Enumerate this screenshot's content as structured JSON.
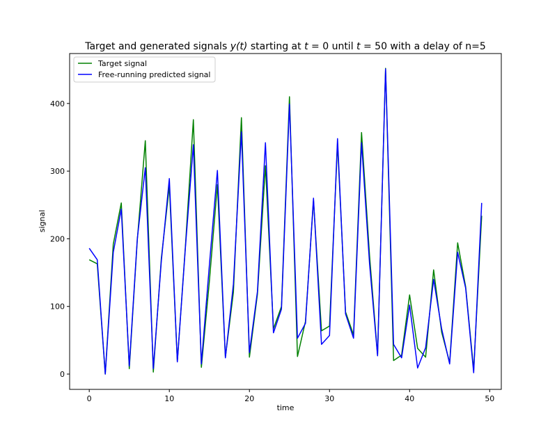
{
  "chart_data": {
    "type": "line",
    "title_parts": [
      "Target and generated signals ",
      "y(t)",
      " starting at ",
      "t",
      " = 0 until ",
      "t",
      " = 50 with a delay of n=5"
    ],
    "xlabel": "time",
    "ylabel": "signal",
    "xlim": [
      -2.45,
      51.45
    ],
    "ylim": [
      -22.6,
      473.8
    ],
    "xticks": [
      0,
      10,
      20,
      30,
      40,
      50
    ],
    "yticks": [
      0,
      100,
      200,
      300,
      400
    ],
    "grid": false,
    "legend_position": "upper-left",
    "x": [
      0,
      1,
      2,
      3,
      4,
      5,
      6,
      7,
      8,
      9,
      10,
      11,
      12,
      13,
      14,
      15,
      16,
      17,
      18,
      19,
      20,
      21,
      22,
      23,
      24,
      25,
      26,
      27,
      28,
      29,
      30,
      31,
      32,
      33,
      34,
      35,
      36,
      37,
      38,
      39,
      40,
      41,
      42,
      43,
      44,
      45,
      46,
      47,
      48,
      49
    ],
    "series": [
      {
        "name": "Target signal",
        "color": "#008000",
        "values": [
          169,
          163,
          0,
          192,
          253,
          8,
          198,
          345,
          3,
          171,
          278,
          19,
          188,
          376,
          10,
          137,
          280,
          25,
          121,
          379,
          25,
          118,
          308,
          67,
          100,
          410,
          26,
          78,
          257,
          64,
          71,
          341,
          92,
          58,
          357,
          175,
          28,
          452,
          20,
          28,
          117,
          38,
          25,
          154,
          62,
          17,
          194,
          129,
          6,
          234
        ]
      },
      {
        "name": "Free-running predicted signal",
        "color": "#0000ff",
        "values": [
          186,
          169,
          0,
          180,
          244,
          12,
          200,
          305,
          8,
          167,
          289,
          18,
          186,
          339,
          15,
          161,
          301,
          24,
          133,
          358,
          32,
          122,
          342,
          61,
          96,
          399,
          53,
          75,
          260,
          44,
          57,
          348,
          89,
          53,
          342,
          163,
          27,
          451,
          44,
          24,
          102,
          9,
          39,
          140,
          67,
          15,
          180,
          127,
          2,
          253
        ]
      }
    ]
  }
}
